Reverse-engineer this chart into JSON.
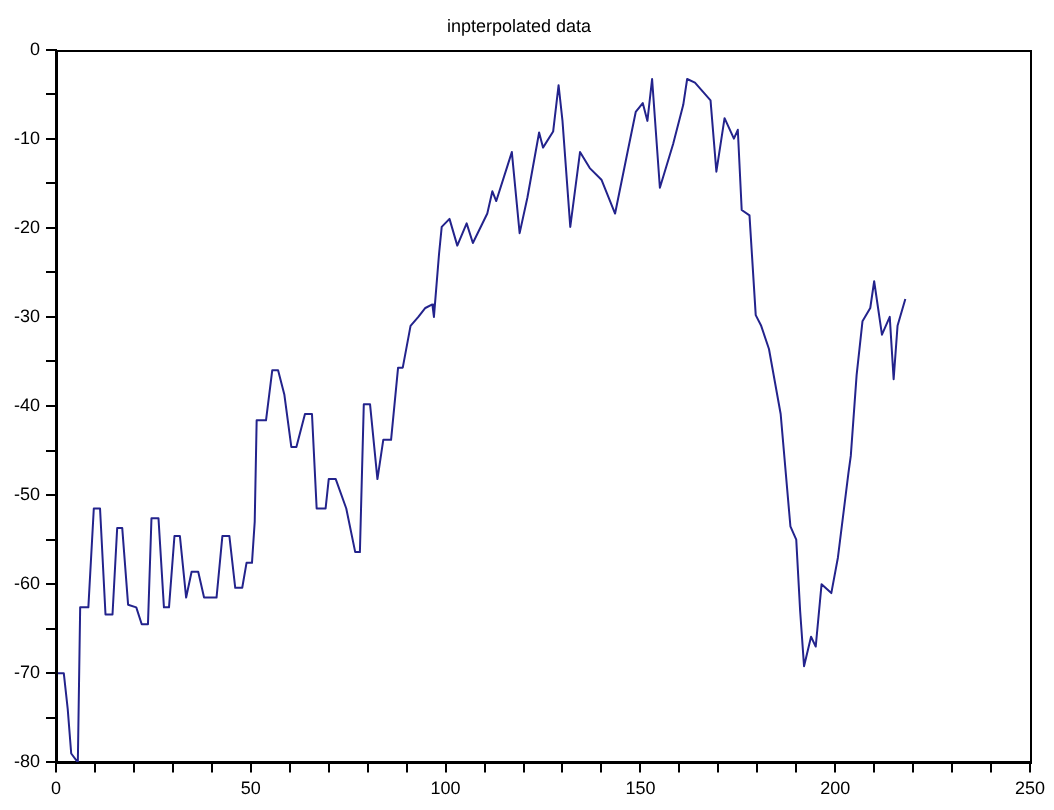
{
  "chart_data": {
    "type": "line",
    "title": "inpterpolated data",
    "xlim": [
      0,
      250
    ],
    "ylim": [
      -80,
      0
    ],
    "xticks": [
      0,
      {
        "value": 10,
        "label": null
      },
      {
        "value": 20,
        "label": null
      },
      {
        "value": 30,
        "label": null
      },
      {
        "value": 40,
        "label": null
      },
      50,
      {
        "value": 60,
        "label": null
      },
      {
        "value": 70,
        "label": null
      },
      {
        "value": 80,
        "label": null
      },
      {
        "value": 90,
        "label": null
      },
      100,
      {
        "value": 110,
        "label": null
      },
      {
        "value": 120,
        "label": null
      },
      {
        "value": 130,
        "label": null
      },
      {
        "value": 140,
        "label": null
      },
      150,
      {
        "value": 160,
        "label": null
      },
      {
        "value": 170,
        "label": null
      },
      {
        "value": 180,
        "label": null
      },
      {
        "value": 190,
        "label": null
      },
      200,
      {
        "value": 210,
        "label": null
      },
      {
        "value": 220,
        "label": null
      },
      {
        "value": 230,
        "label": null
      },
      {
        "value": 240,
        "label": null
      },
      250
    ],
    "yticks": [
      -80,
      {
        "value": -75,
        "label": null
      },
      -70,
      {
        "value": -65,
        "label": null
      },
      -60,
      {
        "value": -55,
        "label": null
      },
      -50,
      {
        "value": -45,
        "label": null
      },
      -40,
      {
        "value": -35,
        "label": null
      },
      -30,
      {
        "value": -25,
        "label": null
      },
      -20,
      {
        "value": -15,
        "label": null
      },
      -10,
      {
        "value": -5,
        "label": null
      },
      0
    ],
    "grid": false,
    "legend": false,
    "marker": "none",
    "line_style": "solid",
    "series": [
      {
        "color": "#23238c",
        "x": [
          0.4,
          2,
          3,
          3.9,
          5.6,
          6.2,
          8.3,
          9.7,
          11.3,
          12.7,
          14.5,
          15.7,
          17,
          18.5,
          20.6,
          22,
          23.6,
          24.5,
          26.3,
          27.7,
          29,
          30.4,
          31.8,
          33.4,
          34.8,
          36.5,
          38,
          41.2,
          42.7,
          44.5,
          46,
          47.8,
          48.9,
          50.3,
          51,
          51.5,
          53.9,
          55.5,
          57,
          58.6,
          60.4,
          61.7,
          63.9,
          65.7,
          66.9,
          69.2,
          70,
          71.8,
          74.5,
          76.8,
          78,
          79,
          80.6,
          82.5,
          84,
          86,
          87.8,
          89,
          91,
          93,
          94.8,
          96.6,
          97,
          98.3,
          99,
          101,
          103,
          105.4,
          107,
          110.7,
          112,
          113,
          117,
          119,
          121,
          124,
          125,
          127.6,
          129,
          130,
          132,
          134.5,
          137,
          140,
          143.5,
          146.7,
          148.8,
          150.6,
          151.8,
          153,
          155,
          158.4,
          161,
          162,
          164,
          168,
          169.5,
          171.6,
          174,
          175,
          176,
          178,
          179.6,
          181,
          183,
          186,
          188.5,
          190,
          191,
          192,
          193.8,
          195,
          196.5,
          199,
          200.7,
          203.4,
          204,
          205.5,
          207,
          209,
          210,
          212,
          214,
          215,
          216,
          218
        ],
        "values": [
          -70,
          -70,
          -74,
          -79,
          -80,
          -62.6,
          -62.6,
          -51.5,
          -51.5,
          -63.4,
          -63.4,
          -53.7,
          -53.7,
          -62.3,
          -62.6,
          -64.5,
          -64.5,
          -52.6,
          -52.6,
          -62.6,
          -62.6,
          -54.6,
          -54.6,
          -61.5,
          -58.6,
          -58.6,
          -61.5,
          -61.5,
          -54.6,
          -54.6,
          -60.4,
          -60.4,
          -57.6,
          -57.6,
          -53,
          -41.6,
          -41.6,
          -36,
          -36,
          -38.7,
          -44.6,
          -44.6,
          -40.9,
          -40.9,
          -51.5,
          -51.5,
          -48.2,
          -48.2,
          -51.5,
          -56.4,
          -56.4,
          -39.8,
          -39.8,
          -48.2,
          -43.8,
          -43.8,
          -35.7,
          -35.7,
          -31,
          -30,
          -29,
          -28.6,
          -30,
          -23,
          -19.9,
          -19,
          -22,
          -19.5,
          -21.7,
          -18.4,
          -15.9,
          -17,
          -11.5,
          -20.6,
          -16.6,
          -9.3,
          -11,
          -9.2,
          -4,
          -8,
          -19.9,
          -11.5,
          -13.3,
          -14.6,
          -18.4,
          -11.5,
          -7,
          -6,
          -8,
          -3.3,
          -15.5,
          -10.6,
          -6.2,
          -3.3,
          -3.7,
          -5.7,
          -13.7,
          -7.7,
          -10,
          -9,
          -18,
          -18.6,
          -29.8,
          -31,
          -33.6,
          -40.9,
          -53.5,
          -55,
          -63,
          -69.2,
          -65.9,
          -67,
          -60,
          -61,
          -57,
          -47.5,
          -45.6,
          -36.5,
          -30.5,
          -29,
          -26,
          -32,
          -30,
          -37,
          -31,
          -28
        ]
      }
    ]
  }
}
